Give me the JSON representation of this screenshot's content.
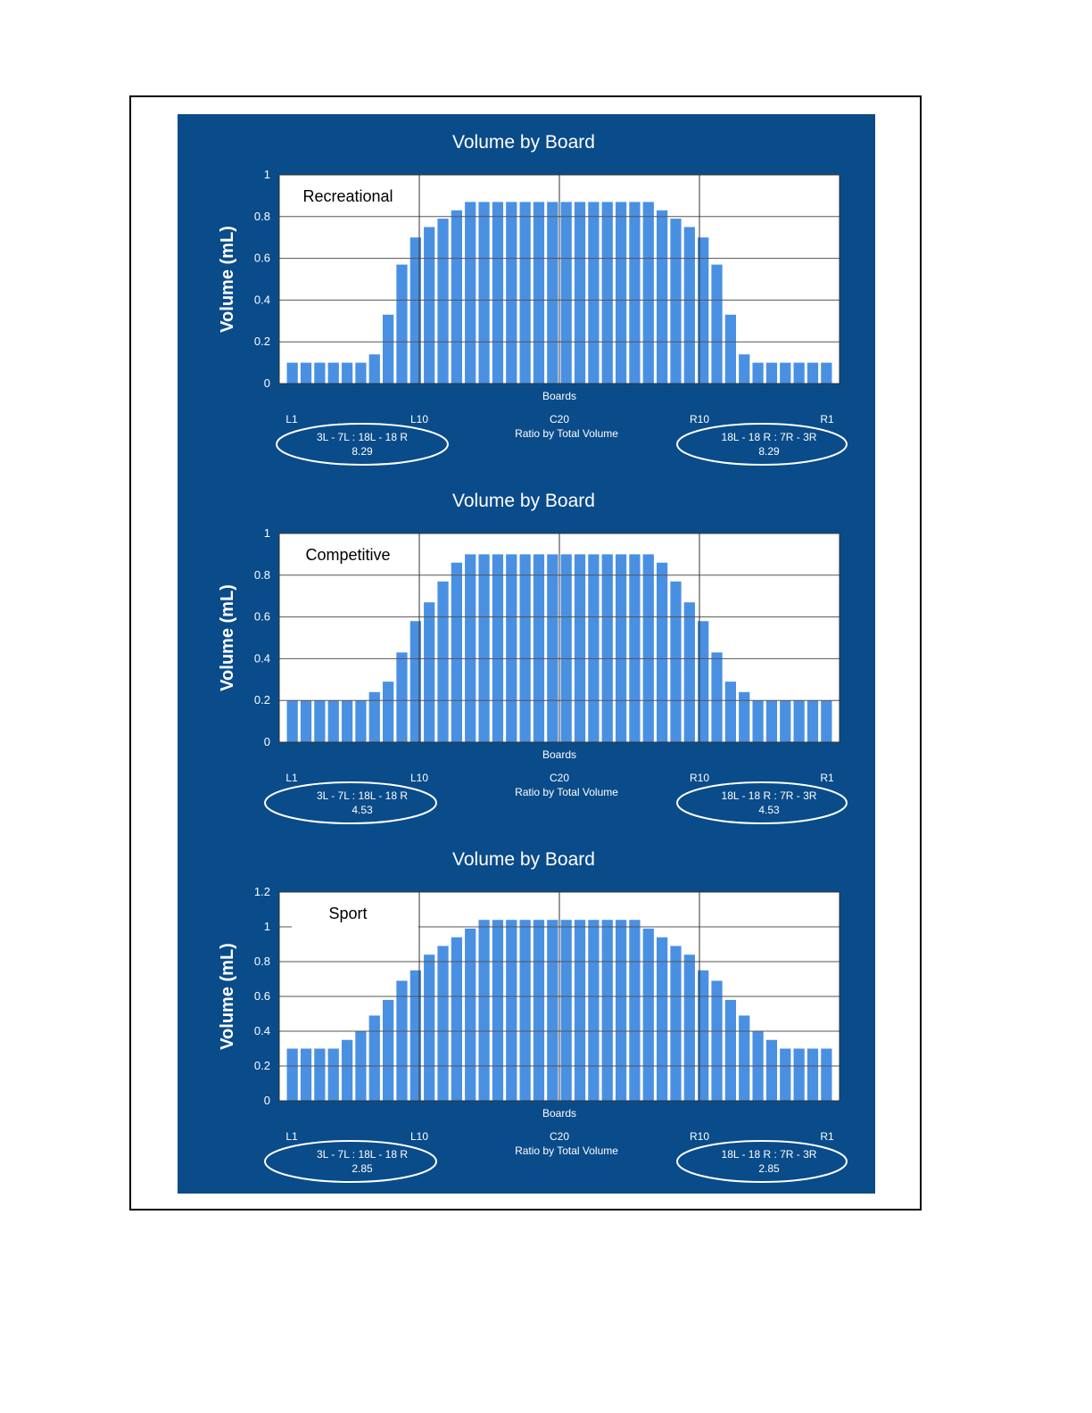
{
  "colors": {
    "panel": "#0a4b8a",
    "bar": "#4a90e2",
    "plot_bg": "#ffffff",
    "grid": "#555555",
    "text": "#ffffff"
  },
  "chart_data": [
    {
      "type": "bar",
      "title": "Volume by Board",
      "ylabel": "Volume (mL)",
      "xlabel": "Boards",
      "ylim": [
        0,
        1
      ],
      "yticks": [
        "0",
        "0.2",
        "0.4",
        "0.6",
        "0.8",
        "1"
      ],
      "tick_labels": {
        "l1": "L1",
        "l10": "L10",
        "c20": "C20",
        "r10": "R10",
        "r1": "R1"
      },
      "plot_label": "Recreational",
      "center_caption": "Ratio by Total Volume",
      "left_ratio": {
        "label": "3L - 7L : 18L - 18 R",
        "value": "8.29"
      },
      "right_ratio": {
        "label": "18L - 18 R : 7R - 3R",
        "value": "8.29"
      },
      "grid": true,
      "values": [
        0.1,
        0.1,
        0.1,
        0.1,
        0.1,
        0.1,
        0.14,
        0.33,
        0.57,
        0.7,
        0.75,
        0.79,
        0.83,
        0.87,
        0.87,
        0.87,
        0.87,
        0.87,
        0.87,
        0.87,
        0.87,
        0.87,
        0.87,
        0.87,
        0.87,
        0.87,
        0.87,
        0.83,
        0.79,
        0.75,
        0.7,
        0.57,
        0.33,
        0.14,
        0.1,
        0.1,
        0.1,
        0.1,
        0.1,
        0.1
      ]
    },
    {
      "type": "bar",
      "title": "Volume by Board",
      "ylabel": "Volume (mL)",
      "xlabel": "Boards",
      "ylim": [
        0,
        1
      ],
      "yticks": [
        "0",
        "0.2",
        "0.4",
        "0.6",
        "0.8",
        "1"
      ],
      "tick_labels": {
        "l1": "L1",
        "l10": "L10",
        "c20": "C20",
        "r10": "R10",
        "r1": "R1"
      },
      "plot_label": "Competitive",
      "center_caption": "Ratio by Total Volume",
      "left_ratio": {
        "label": "3L - 7L : 18L - 18 R",
        "value": "4.53"
      },
      "right_ratio": {
        "label": "18L - 18 R : 7R - 3R",
        "value": "4.53"
      },
      "grid": true,
      "values": [
        0.2,
        0.2,
        0.2,
        0.2,
        0.2,
        0.2,
        0.24,
        0.29,
        0.43,
        0.58,
        0.67,
        0.77,
        0.86,
        0.9,
        0.9,
        0.9,
        0.9,
        0.9,
        0.9,
        0.9,
        0.9,
        0.9,
        0.9,
        0.9,
        0.9,
        0.9,
        0.9,
        0.86,
        0.77,
        0.67,
        0.58,
        0.43,
        0.29,
        0.24,
        0.2,
        0.2,
        0.2,
        0.2,
        0.2,
        0.2
      ]
    },
    {
      "type": "bar",
      "title": "Volume by Board",
      "ylabel": "Volume (mL)",
      "xlabel": "Boards",
      "ylim": [
        0,
        1.2
      ],
      "yticks": [
        "0",
        "0.2",
        "0.4",
        "0.6",
        "0.8",
        "1",
        "1.2"
      ],
      "tick_labels": {
        "l1": "L1",
        "l10": "L10",
        "c20": "C20",
        "r10": "R10",
        "r1": "R1"
      },
      "plot_label": "Sport",
      "center_caption": "Ratio by Total Volume",
      "left_ratio": {
        "label": "3L - 7L : 18L - 18 R",
        "value": "2.85"
      },
      "right_ratio": {
        "label": "18L - 18 R : 7R - 3R",
        "value": "2.85"
      },
      "grid": true,
      "values": [
        0.3,
        0.3,
        0.3,
        0.3,
        0.35,
        0.4,
        0.49,
        0.58,
        0.69,
        0.75,
        0.84,
        0.89,
        0.94,
        0.99,
        1.04,
        1.04,
        1.04,
        1.04,
        1.04,
        1.04,
        1.04,
        1.04,
        1.04,
        1.04,
        1.04,
        1.04,
        0.99,
        0.94,
        0.89,
        0.84,
        0.75,
        0.69,
        0.58,
        0.49,
        0.4,
        0.35,
        0.3,
        0.3,
        0.3,
        0.3
      ]
    }
  ]
}
